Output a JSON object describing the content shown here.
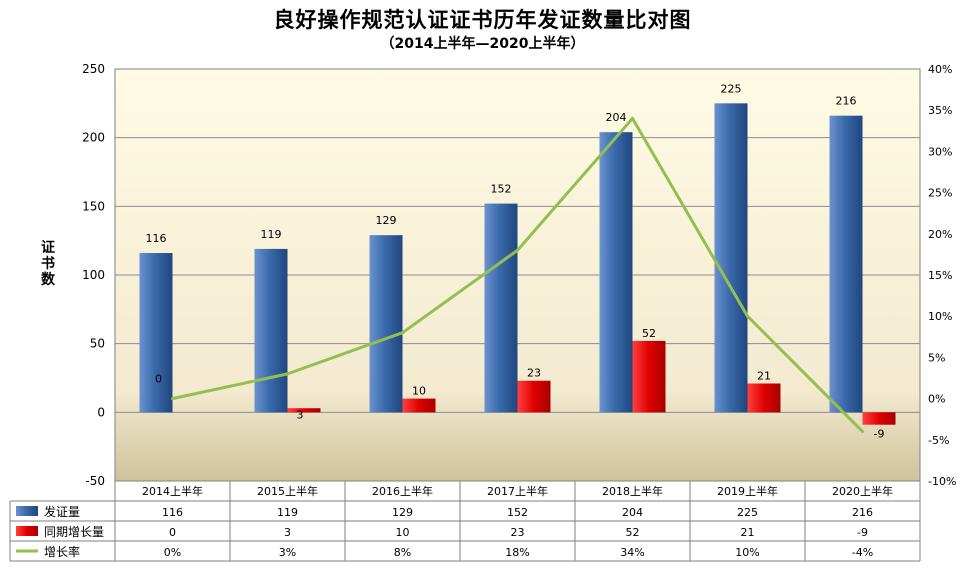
{
  "chart_data": {
    "type": "bar",
    "title": "良好操作规范认证证书历年发证数量比对图",
    "subtitle": "（2014上半年—2020上半年）",
    "xlabel": "",
    "ylabel": "证书数",
    "ylim": [
      -50,
      250
    ],
    "yticks": [
      "250",
      "200",
      "150",
      "100",
      "50",
      "0",
      "-50"
    ],
    "y2lim": [
      -10,
      40
    ],
    "y2ticks": [
      "40%",
      "35%",
      "30%",
      "25%",
      "20%",
      "15%",
      "10%",
      "5%",
      "0%",
      "-5%",
      "-10%"
    ],
    "categories": [
      "2014上半年",
      "2015上半年",
      "2016上半年",
      "2017上半年",
      "2018上半年",
      "2019上半年",
      "2020上半年"
    ],
    "series": [
      {
        "name": "发证量",
        "type": "bar",
        "axis": "left",
        "values": [
          116,
          119,
          129,
          152,
          204,
          225,
          216
        ],
        "labels": [
          "116",
          "119",
          "129",
          "152",
          "204",
          "225",
          "216"
        ],
        "color": "#2e5c9a"
      },
      {
        "name": "同期增长量",
        "type": "bar",
        "axis": "left",
        "values": [
          0,
          3,
          10,
          23,
          52,
          21,
          -9
        ],
        "labels": [
          "0",
          "3",
          "10",
          "23",
          "52",
          "21",
          "-9"
        ],
        "color": "#e00000"
      },
      {
        "name": "增长率",
        "type": "line",
        "axis": "right",
        "values": [
          0,
          3,
          8,
          18,
          34,
          10,
          -4
        ],
        "labels": [
          "0%",
          "3%",
          "8%",
          "18%",
          "34%",
          "10%",
          "-4%"
        ],
        "color": "#92c050"
      }
    ],
    "legend": "table-bottom",
    "grid": true
  }
}
